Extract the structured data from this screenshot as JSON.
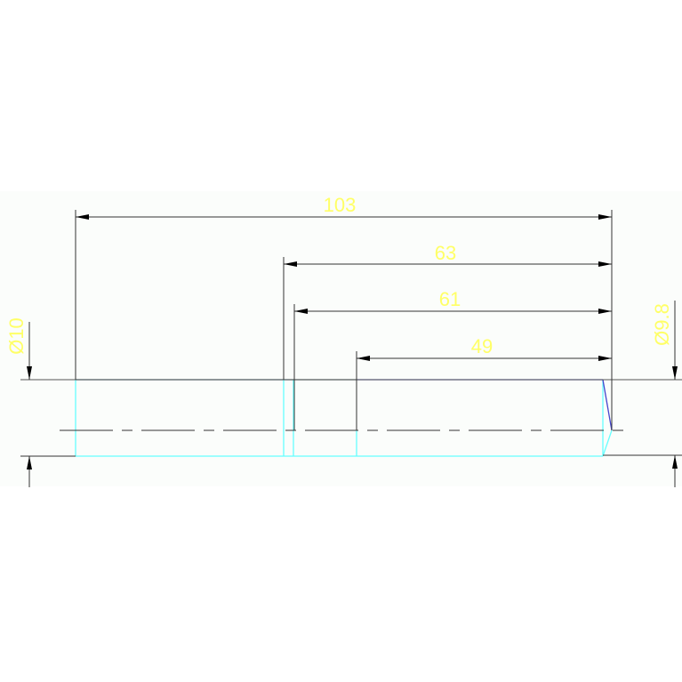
{
  "drawing": {
    "dimensions": {
      "length_103": "103",
      "length_63": "63",
      "length_61": "61",
      "length_49": "49",
      "diameter_left": "Ø10",
      "diameter_right": "Ø9.8"
    },
    "colors": {
      "background_band": "#fbfdfb",
      "dimension_line": "#333333",
      "dimension_text": "#ffff66",
      "part_outline": "#66ffff",
      "chamfer_edge": "#4444cc"
    }
  }
}
